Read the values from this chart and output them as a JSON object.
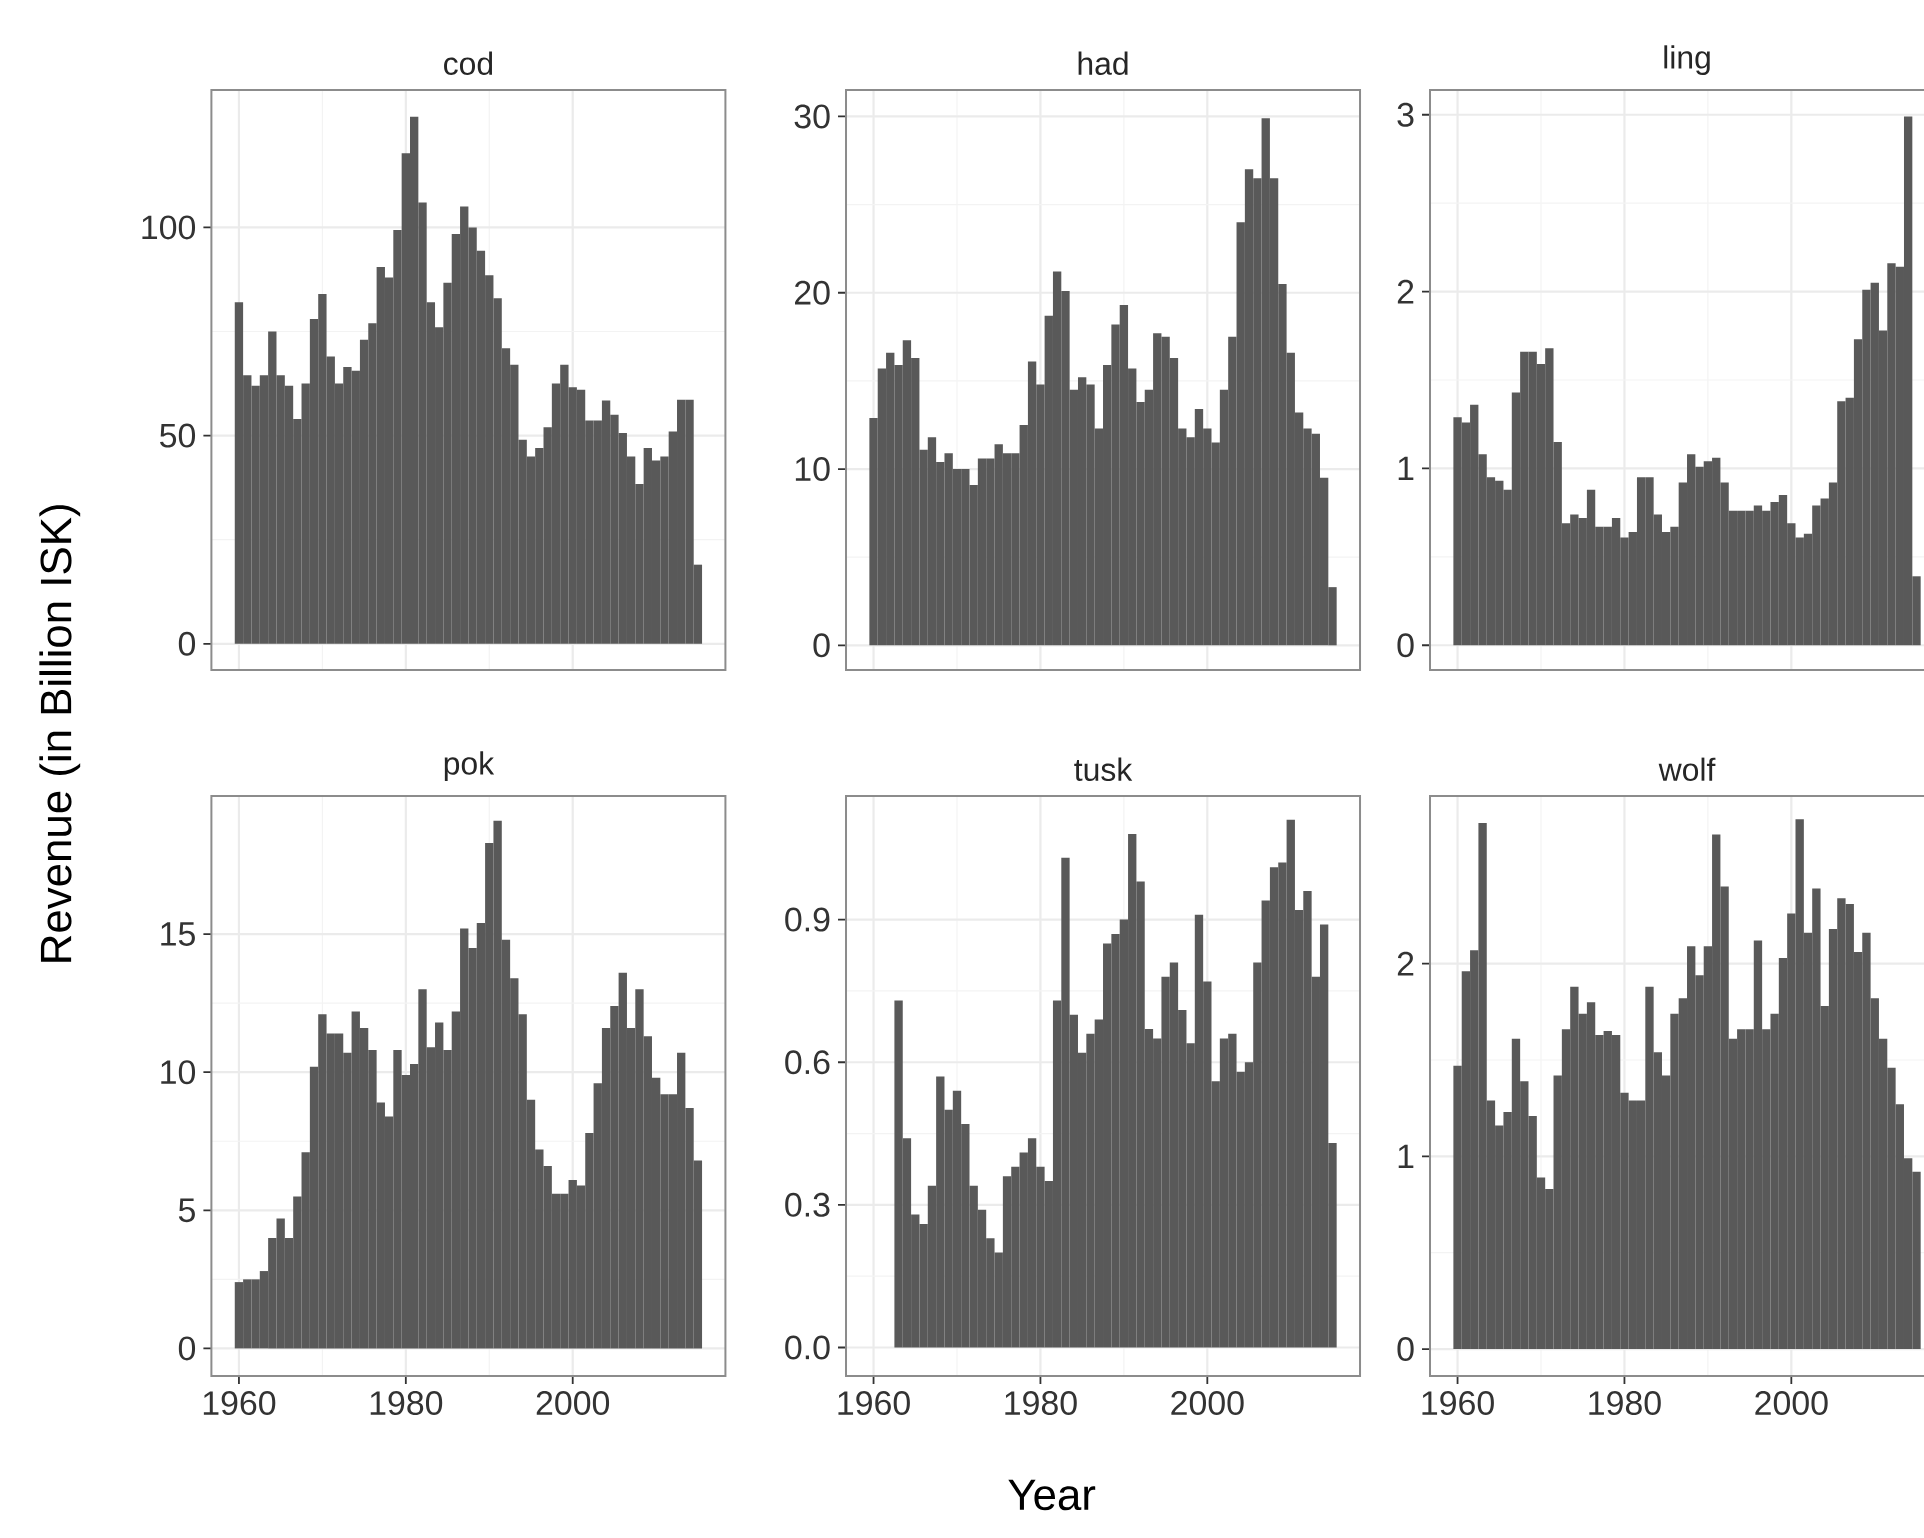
{
  "chart_data": [
    {
      "type": "bar",
      "title": "cod",
      "color": "#595959",
      "ylabel": "Revenue (in Billion ISK)",
      "grid": true,
      "tick_labels": "y",
      "xlim": [
        1956.7,
        2018.3
      ],
      "xticks": [
        1960,
        1980,
        2000
      ],
      "ylim": [
        -6.3,
        133
      ],
      "yticks": [
        0,
        50,
        100
      ],
      "x": [
        1960,
        1961,
        1962,
        1963,
        1964,
        1965,
        1966,
        1967,
        1968,
        1969,
        1970,
        1971,
        1972,
        1973,
        1974,
        1975,
        1976,
        1977,
        1978,
        1979,
        1980,
        1981,
        1982,
        1983,
        1984,
        1985,
        1986,
        1987,
        1988,
        1989,
        1990,
        1991,
        1992,
        1993,
        1994,
        1995,
        1996,
        1997,
        1998,
        1999,
        2000,
        2001,
        2002,
        2003,
        2004,
        2005,
        2006,
        2007,
        2008,
        2009,
        2010,
        2011,
        2012,
        2013,
        2014,
        2015
      ],
      "values": [
        82,
        64.5,
        62,
        64.5,
        75,
        64.5,
        62,
        54,
        62.5,
        78,
        84,
        69,
        62.5,
        66.5,
        65.6,
        73,
        77,
        90.5,
        88,
        99.4,
        117.8,
        126.6,
        106,
        82,
        76,
        86.7,
        98.4,
        105,
        100,
        94.4,
        88.5,
        83,
        71,
        67,
        49,
        45,
        47,
        52,
        62.5,
        67,
        61.6,
        61,
        53.6,
        53.6,
        58.4,
        55,
        50.6,
        45,
        38.4,
        47,
        44,
        45,
        51,
        58.6,
        58.6,
        19
      ]
    },
    {
      "type": "bar",
      "title": "had",
      "color": "#595959",
      "grid": true,
      "tick_labels": "y",
      "xlim": [
        1956.7,
        2018.3
      ],
      "xticks": [
        1960,
        1980,
        2000
      ],
      "ylim": [
        -1.4,
        31.5
      ],
      "yticks": [
        0,
        10,
        20,
        30
      ],
      "x": [
        1960,
        1961,
        1962,
        1963,
        1964,
        1965,
        1966,
        1967,
        1968,
        1969,
        1970,
        1971,
        1972,
        1973,
        1974,
        1975,
        1976,
        1977,
        1978,
        1979,
        1980,
        1981,
        1982,
        1983,
        1984,
        1985,
        1986,
        1987,
        1988,
        1989,
        1990,
        1991,
        1992,
        1993,
        1994,
        1995,
        1996,
        1997,
        1998,
        1999,
        2000,
        2001,
        2002,
        2003,
        2004,
        2005,
        2006,
        2007,
        2008,
        2009,
        2010,
        2011,
        2012,
        2013,
        2014,
        2015
      ],
      "values": [
        12.9,
        15.7,
        16.6,
        15.9,
        17.3,
        16.3,
        11.1,
        11.8,
        10.4,
        10.9,
        10.0,
        10.0,
        9.1,
        10.6,
        10.6,
        11.4,
        10.9,
        10.9,
        12.5,
        16.1,
        14.8,
        18.7,
        21.2,
        20.1,
        14.5,
        15.2,
        14.8,
        12.3,
        15.9,
        18.2,
        19.3,
        15.7,
        13.8,
        14.5,
        17.7,
        17.5,
        16.3,
        12.3,
        11.8,
        13.4,
        12.3,
        11.5,
        14.5,
        17.5,
        24.0,
        27.0,
        26.5,
        29.9,
        26.5,
        20.5,
        16.6,
        13.2,
        12.3,
        12.0,
        9.5,
        3.3
      ]
    },
    {
      "type": "bar",
      "title": "ling",
      "color": "#595959",
      "grid": true,
      "tick_labels": "y",
      "xlim": [
        1956.7,
        2018.3
      ],
      "xticks": [
        1960,
        1980,
        2000
      ],
      "ylim": [
        -0.14,
        3.14
      ],
      "yticks": [
        0,
        1,
        2,
        3
      ],
      "x": [
        1960,
        1961,
        1962,
        1963,
        1964,
        1965,
        1966,
        1967,
        1968,
        1969,
        1970,
        1971,
        1972,
        1973,
        1974,
        1975,
        1976,
        1977,
        1978,
        1979,
        1980,
        1981,
        1982,
        1983,
        1984,
        1985,
        1986,
        1987,
        1988,
        1989,
        1990,
        1991,
        1992,
        1993,
        1994,
        1995,
        1996,
        1997,
        1998,
        1999,
        2000,
        2001,
        2002,
        2003,
        2004,
        2005,
        2006,
        2007,
        2008,
        2009,
        2010,
        2011,
        2012,
        2013,
        2014,
        2015
      ],
      "values": [
        1.29,
        1.26,
        1.36,
        1.08,
        0.95,
        0.93,
        0.88,
        1.43,
        1.66,
        1.66,
        1.59,
        1.68,
        1.15,
        0.69,
        0.74,
        0.72,
        0.88,
        0.67,
        0.67,
        0.72,
        0.61,
        0.64,
        0.95,
        0.95,
        0.74,
        0.64,
        0.67,
        0.92,
        1.08,
        1.01,
        1.04,
        1.06,
        0.92,
        0.76,
        0.76,
        0.76,
        0.79,
        0.76,
        0.81,
        0.85,
        0.69,
        0.61,
        0.63,
        0.79,
        0.83,
        0.92,
        1.38,
        1.4,
        1.73,
        2.01,
        2.05,
        1.78,
        2.16,
        2.14,
        2.99,
        0.39
      ]
    },
    {
      "type": "bar",
      "title": "pok",
      "color": "#595959",
      "grid": true,
      "xlim": [
        1956.7,
        2018.3
      ],
      "xticks": [
        1960,
        1980,
        2000
      ],
      "ylim": [
        -1.0,
        20.0
      ],
      "yticks": [
        0,
        5,
        10,
        15
      ],
      "x": [
        1960,
        1961,
        1962,
        1963,
        1964,
        1965,
        1966,
        1967,
        1968,
        1969,
        1970,
        1971,
        1972,
        1973,
        1974,
        1975,
        1976,
        1977,
        1978,
        1979,
        1980,
        1981,
        1982,
        1983,
        1984,
        1985,
        1986,
        1987,
        1988,
        1989,
        1990,
        1991,
        1992,
        1993,
        1994,
        1995,
        1996,
        1997,
        1998,
        1999,
        2000,
        2001,
        2002,
        2003,
        2004,
        2005,
        2006,
        2007,
        2008,
        2009,
        2010,
        2011,
        2012,
        2013,
        2014,
        2015
      ],
      "values": [
        2.4,
        2.5,
        2.5,
        2.8,
        4.0,
        4.7,
        4.0,
        5.5,
        7.1,
        10.2,
        12.1,
        11.4,
        11.4,
        10.7,
        12.2,
        11.6,
        10.8,
        8.9,
        8.4,
        10.8,
        9.9,
        10.3,
        13.0,
        10.9,
        11.8,
        10.8,
        12.2,
        15.2,
        14.5,
        15.4,
        18.3,
        19.1,
        14.8,
        13.4,
        12.1,
        9.0,
        7.2,
        6.6,
        5.6,
        5.6,
        6.1,
        5.9,
        7.8,
        9.6,
        11.6,
        12.4,
        13.6,
        11.6,
        13.0,
        11.3,
        9.8,
        9.2,
        9.2,
        10.7,
        8.7,
        6.8
      ]
    },
    {
      "type": "bar",
      "title": "tusk",
      "color": "#595959",
      "xlabel": "Year",
      "grid": true,
      "xlim": [
        1956.7,
        2018.3
      ],
      "xticks": [
        1960,
        1980,
        2000
      ],
      "ylim": [
        -0.06,
        1.16
      ],
      "yticks": [
        {
          "value": 0,
          "label": "0.0"
        },
        {
          "value": 0.3,
          "label": "0.3"
        },
        {
          "value": 0.6,
          "label": "0.6"
        },
        {
          "value": 0.9,
          "label": "0.9"
        }
      ],
      "x": [
        1963,
        1964,
        1965,
        1966,
        1967,
        1968,
        1969,
        1970,
        1971,
        1972,
        1973,
        1974,
        1975,
        1976,
        1977,
        1978,
        1979,
        1980,
        1981,
        1982,
        1983,
        1984,
        1985,
        1986,
        1987,
        1988,
        1989,
        1990,
        1991,
        1992,
        1993,
        1994,
        1995,
        1996,
        1997,
        1998,
        1999,
        2000,
        2001,
        2002,
        2003,
        2004,
        2005,
        2006,
        2007,
        2008,
        2009,
        2010,
        2011,
        2012,
        2013,
        2014,
        2015
      ],
      "values": [
        0.73,
        0.44,
        0.28,
        0.26,
        0.34,
        0.57,
        0.5,
        0.54,
        0.47,
        0.34,
        0.29,
        0.23,
        0.2,
        0.36,
        0.38,
        0.41,
        0.44,
        0.38,
        0.35,
        0.73,
        1.03,
        0.7,
        0.62,
        0.66,
        0.69,
        0.85,
        0.87,
        0.9,
        1.08,
        0.98,
        0.67,
        0.65,
        0.78,
        0.81,
        0.71,
        0.64,
        0.91,
        0.77,
        0.56,
        0.65,
        0.66,
        0.58,
        0.6,
        0.81,
        0.94,
        1.01,
        1.02,
        1.11,
        0.92,
        0.96,
        0.78,
        0.89,
        0.43
      ]
    },
    {
      "type": "bar",
      "title": "wolf",
      "color": "#595959",
      "grid": true,
      "xlim": [
        1956.7,
        2018.3
      ],
      "xticks": [
        1960,
        1980,
        2000
      ],
      "ylim": [
        -0.14,
        2.87
      ],
      "yticks": [
        0,
        1,
        2
      ],
      "x": [
        1960,
        1961,
        1962,
        1963,
        1964,
        1965,
        1966,
        1967,
        1968,
        1969,
        1970,
        1971,
        1972,
        1973,
        1974,
        1975,
        1976,
        1977,
        1978,
        1979,
        1980,
        1981,
        1982,
        1983,
        1984,
        1985,
        1986,
        1987,
        1988,
        1989,
        1990,
        1991,
        1992,
        1993,
        1994,
        1995,
        1996,
        1997,
        1998,
        1999,
        2000,
        2001,
        2002,
        2003,
        2004,
        2005,
        2006,
        2007,
        2008,
        2009,
        2010,
        2011,
        2012,
        2013,
        2014,
        2015
      ],
      "values": [
        1.47,
        1.96,
        2.07,
        2.73,
        1.29,
        1.16,
        1.23,
        1.61,
        1.39,
        1.21,
        0.89,
        0.83,
        1.42,
        1.66,
        1.88,
        1.74,
        1.8,
        1.63,
        1.65,
        1.63,
        1.33,
        1.29,
        1.29,
        1.88,
        1.54,
        1.42,
        1.74,
        1.82,
        2.09,
        1.94,
        2.09,
        2.67,
        2.4,
        1.61,
        1.66,
        1.66,
        2.12,
        1.66,
        1.74,
        2.03,
        2.26,
        2.75,
        2.16,
        2.39,
        1.78,
        2.18,
        2.34,
        2.31,
        2.06,
        2.16,
        1.82,
        1.61,
        1.46,
        1.27,
        0.99,
        0.92
      ]
    }
  ]
}
